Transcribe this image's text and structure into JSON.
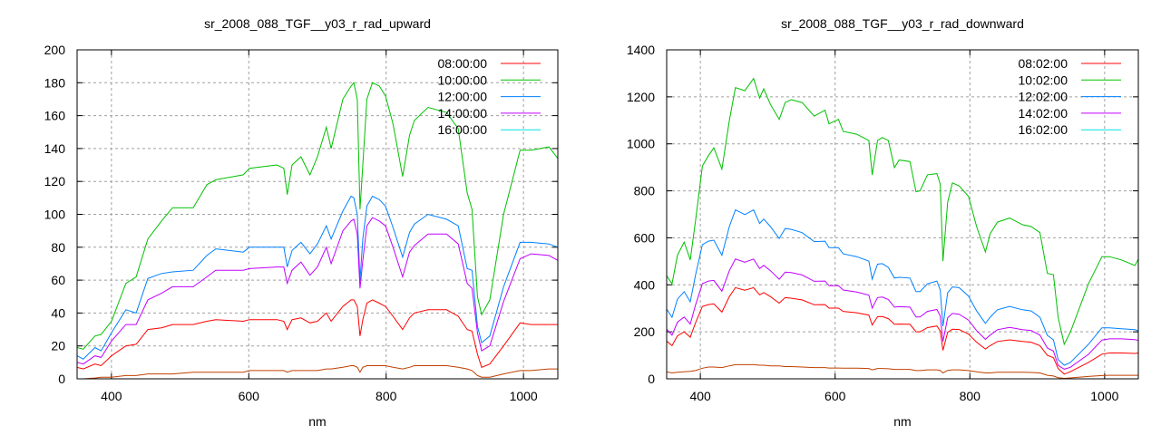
{
  "chart_data": [
    {
      "type": "line",
      "title": "sr_2008_088_TGF__y03_r_rad_upward",
      "xlabel": "nm",
      "ylabel": "",
      "xlim": [
        350,
        1050
      ],
      "ylim": [
        0,
        200
      ],
      "xticks": [
        400,
        600,
        800,
        1000
      ],
      "yticks": [
        0,
        20,
        40,
        60,
        80,
        100,
        120,
        140,
        160,
        180,
        200
      ],
      "grid": true,
      "legend_position": "top-right",
      "x": [
        350,
        359,
        376,
        385,
        400,
        421,
        436,
        453,
        473,
        489,
        519,
        539,
        552,
        592,
        601,
        641,
        651,
        656,
        663,
        676,
        689,
        700,
        713,
        720,
        737,
        749,
        753,
        758,
        762,
        766,
        772,
        780,
        790,
        799,
        810,
        824,
        834,
        841,
        861,
        888,
        905,
        918,
        925,
        933,
        939,
        951,
        971,
        995,
        1011,
        1037,
        1050
      ],
      "series": [
        {
          "name": "08:00:00",
          "legend_color": "#ff0000",
          "color": "#ff0000",
          "values": [
            7,
            6,
            9,
            8,
            14,
            20,
            21,
            30,
            31,
            33,
            33,
            35,
            36,
            35,
            36,
            36,
            35,
            30,
            36,
            37,
            34,
            35,
            40,
            35,
            44,
            48,
            48,
            44,
            26,
            36,
            46,
            48,
            46,
            44,
            38,
            30,
            37,
            40,
            42,
            42,
            38,
            30,
            29,
            15,
            7,
            9,
            20,
            34,
            33,
            33,
            33
          ]
        },
        {
          "name": "10:00:00",
          "legend_color": "#00c000",
          "color": "#00c000",
          "values": [
            19,
            18,
            26,
            27,
            35,
            58,
            62,
            85,
            96,
            104,
            104,
            118,
            121,
            124,
            128,
            130,
            128,
            112,
            130,
            135,
            124,
            135,
            153,
            140,
            170,
            178,
            180,
            170,
            103,
            130,
            170,
            180,
            178,
            172,
            155,
            123,
            148,
            157,
            165,
            162,
            152,
            113,
            103,
            50,
            39,
            48,
            100,
            139,
            139,
            141,
            134
          ]
        },
        {
          "name": "12:00:00",
          "legend_color": "#0080ff",
          "color": "#0080ff",
          "values": [
            14,
            12,
            19,
            17,
            28,
            42,
            40,
            61,
            64,
            65,
            66,
            75,
            79,
            77,
            80,
            80,
            80,
            68,
            78,
            83,
            76,
            82,
            93,
            85,
            102,
            111,
            110,
            100,
            60,
            85,
            105,
            111,
            109,
            105,
            92,
            74,
            89,
            94,
            100,
            97,
            93,
            67,
            66,
            32,
            22,
            26,
            56,
            83,
            83,
            82,
            80
          ]
        },
        {
          "name": "14:00:00",
          "legend_color": "#c000ff",
          "color": "#c000ff",
          "values": [
            10,
            9,
            14,
            13,
            23,
            33,
            33,
            48,
            52,
            56,
            56,
            62,
            66,
            66,
            67,
            68,
            68,
            58,
            66,
            71,
            63,
            68,
            80,
            70,
            90,
            96,
            97,
            88,
            55,
            72,
            93,
            98,
            96,
            93,
            80,
            62,
            77,
            81,
            88,
            88,
            82,
            58,
            55,
            28,
            17,
            20,
            47,
            73,
            76,
            75,
            72
          ]
        },
        {
          "name": "16:00:00",
          "legend_color": "#00e0e0",
          "color": "#c04000",
          "values": [
            0,
            0,
            0.5,
            1,
            1,
            2,
            2,
            3,
            3,
            3,
            4,
            4,
            4,
            4,
            5,
            5,
            5,
            4,
            5,
            5,
            5,
            5,
            6,
            6,
            7,
            8,
            8,
            7,
            4,
            7,
            8,
            8,
            8,
            8,
            7,
            6,
            7,
            8,
            8,
            8,
            7,
            6,
            5,
            2,
            1,
            1,
            3,
            5,
            5,
            6,
            6
          ]
        }
      ]
    },
    {
      "type": "line",
      "title": "sr_2008_088_TGF__y03_r_rad_downward",
      "xlabel": "nm",
      "ylabel": "",
      "xlim": [
        350,
        1050
      ],
      "ylim": [
        0,
        1400
      ],
      "xticks": [
        400,
        600,
        800,
        1000
      ],
      "yticks": [
        0,
        200,
        400,
        600,
        800,
        1000,
        1200,
        1400
      ],
      "grid": true,
      "legend_position": "top-right",
      "x": [
        349,
        358,
        366,
        376,
        385,
        393,
        403,
        412,
        420,
        432,
        443,
        452,
        466,
        479,
        488,
        494,
        504,
        517,
        526,
        535,
        551,
        569,
        585,
        591,
        605,
        612,
        632,
        650,
        655,
        663,
        670,
        679,
        688,
        695,
        711,
        720,
        726,
        737,
        751,
        756,
        760,
        767,
        774,
        784,
        798,
        810,
        823,
        830,
        841,
        859,
        878,
        891,
        904,
        915,
        924,
        931,
        940,
        949,
        976,
        996,
        1007,
        1025,
        1045,
        1050
      ],
      "series": [
        {
          "name": "08:02:00",
          "legend_color": "#ff0000",
          "color": "#ff0000",
          "values": [
            163,
            141,
            183,
            200,
            177,
            239,
            308,
            316,
            319,
            284,
            350,
            388,
            377,
            388,
            357,
            367,
            350,
            322,
            346,
            343,
            336,
            315,
            316,
            301,
            301,
            287,
            281,
            271,
            229,
            264,
            265,
            256,
            232,
            233,
            232,
            200,
            200,
            218,
            225,
            204,
            121,
            198,
            211,
            210,
            190,
            156,
            127,
            141,
            159,
            166,
            159,
            156,
            141,
            100,
            90,
            44,
            20,
            30,
            70,
            105,
            110,
            110,
            108,
            110
          ]
        },
        {
          "name": "10:02:00",
          "legend_color": "#00c000",
          "color": "#00c000",
          "values": [
            443,
            404,
            526,
            582,
            506,
            675,
            906,
            950,
            983,
            892,
            1099,
            1239,
            1226,
            1278,
            1195,
            1234,
            1168,
            1104,
            1176,
            1188,
            1176,
            1118,
            1143,
            1085,
            1104,
            1053,
            1041,
            1014,
            868,
            1014,
            1027,
            1014,
            899,
            931,
            925,
            796,
            800,
            868,
            873,
            829,
            501,
            752,
            834,
            821,
            776,
            648,
            540,
            617,
            667,
            684,
            656,
            648,
            622,
            449,
            443,
            262,
            147,
            198,
            404,
            520,
            520,
            506,
            482,
            510
          ]
        },
        {
          "name": "12:02:00",
          "legend_color": "#0080ff",
          "color": "#0080ff",
          "values": [
            301,
            262,
            339,
            371,
            328,
            443,
            571,
            586,
            590,
            526,
            648,
            719,
            699,
            719,
            661,
            680,
            648,
            597,
            640,
            636,
            622,
            584,
            586,
            558,
            558,
            532,
            520,
            501,
            424,
            488,
            490,
            474,
            429,
            432,
            429,
            371,
            371,
            404,
            416,
            378,
            224,
            366,
            391,
            388,
            352,
            289,
            236,
            262,
            294,
            308,
            294,
            289,
            262,
            185,
            166,
            82,
            58,
            69,
            147,
            217,
            217,
            213,
            209,
            204
          ]
        },
        {
          "name": "14:02:00",
          "legend_color": "#c000ff",
          "color": "#c000ff",
          "values": [
            214,
            186,
            241,
            263,
            233,
            315,
            405,
            416,
            419,
            373,
            460,
            510,
            496,
            510,
            469,
            483,
            460,
            424,
            454,
            452,
            442,
            415,
            416,
            396,
            396,
            378,
            369,
            356,
            301,
            346,
            348,
            337,
            305,
            307,
            305,
            263,
            263,
            287,
            295,
            268,
            159,
            260,
            278,
            275,
            250,
            205,
            168,
            186,
            209,
            219,
            209,
            205,
            186,
            131,
            118,
            58,
            41,
            49,
            104,
            165,
            170,
            170,
            167,
            163
          ]
        },
        {
          "name": "16:02:00",
          "legend_color": "#00e0e0",
          "color": "#c04000",
          "values": [
            30,
            25,
            28,
            30,
            32,
            35,
            45,
            50,
            50,
            48,
            55,
            60,
            60,
            60,
            58,
            58,
            55,
            55,
            52,
            52,
            50,
            48,
            48,
            46,
            46,
            45,
            45,
            44,
            38,
            44,
            44,
            43,
            40,
            40,
            40,
            35,
            35,
            38,
            38,
            36,
            25,
            36,
            38,
            38,
            35,
            30,
            25,
            25,
            28,
            28,
            28,
            27,
            25,
            15,
            12,
            5,
            2,
            4,
            10,
            14,
            15,
            15,
            15,
            15
          ]
        }
      ]
    }
  ]
}
